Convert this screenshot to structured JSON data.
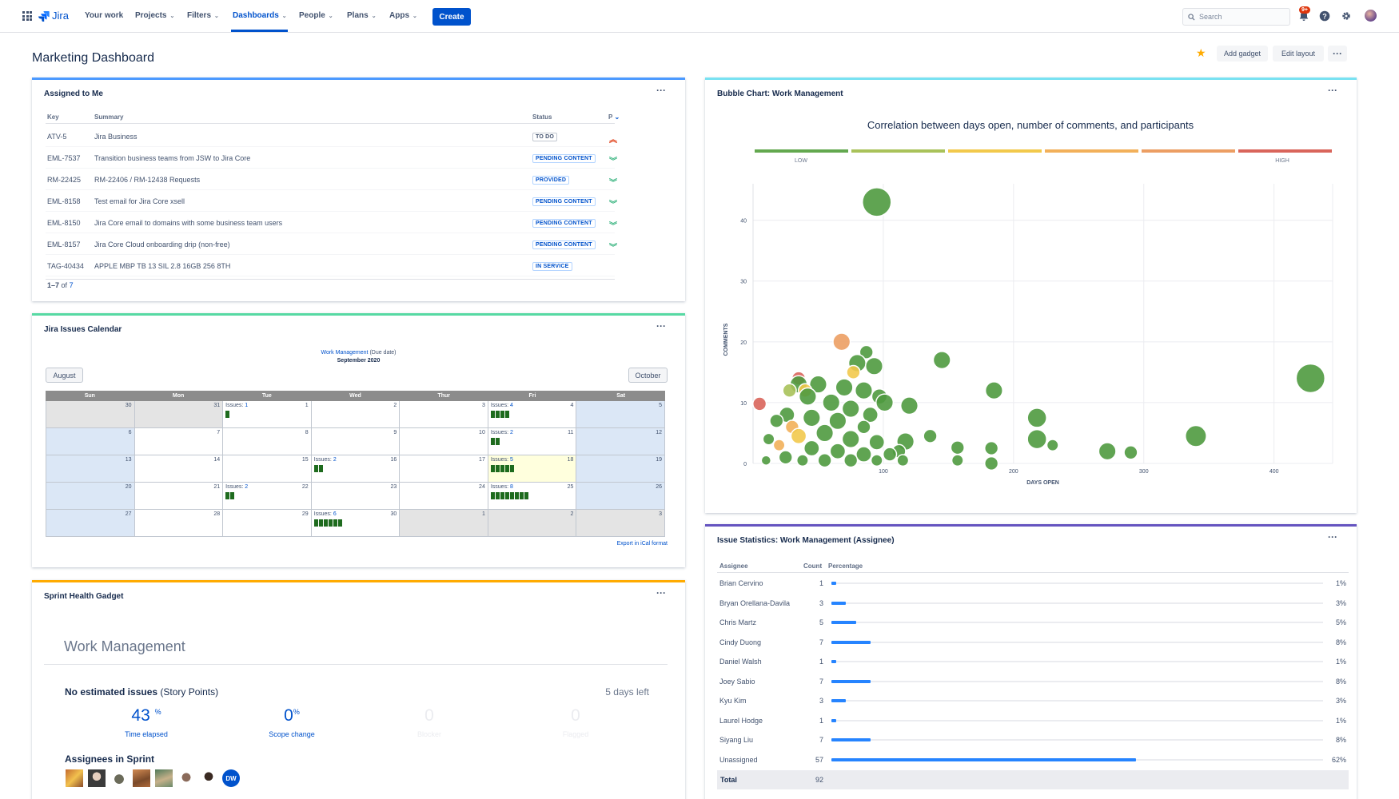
{
  "nav": {
    "product": "Jira",
    "items": [
      {
        "label": "Your work",
        "chevron": false
      },
      {
        "label": "Projects",
        "chevron": true
      },
      {
        "label": "Filters",
        "chevron": true
      },
      {
        "label": "Dashboards",
        "chevron": true,
        "active": true
      },
      {
        "label": "People",
        "chevron": true
      },
      {
        "label": "Plans",
        "chevron": true
      },
      {
        "label": "Apps",
        "chevron": true
      }
    ],
    "create": "Create",
    "search_placeholder": "Search",
    "notification_count": "9+"
  },
  "page": {
    "title": "Marketing Dashboard",
    "add_gadget": "Add gadget",
    "edit_layout": "Edit layout"
  },
  "assigned": {
    "title": "Assigned to Me",
    "columns": {
      "key": "Key",
      "summary": "Summary",
      "status": "Status",
      "priority": "P"
    },
    "rows": [
      {
        "key": "ATV-5",
        "summary": "Jira Business",
        "status": "TO DO",
        "priority": "highest"
      },
      {
        "key": "EML-7537",
        "summary": "Transition business teams from JSW to Jira Core",
        "status": "PENDING CONTENT",
        "priority": "lowest"
      },
      {
        "key": "RM-22425",
        "summary": "RM-22406 / RM-12438 Requests",
        "status": "PROVIDED",
        "priority": "lowest"
      },
      {
        "key": "EML-8158",
        "summary": "Test email for Jira Core xsell",
        "status": "PENDING CONTENT",
        "priority": "lowest"
      },
      {
        "key": "EML-8150",
        "summary": "Jira Core email to domains with some business team users",
        "status": "PENDING CONTENT",
        "priority": "lowest"
      },
      {
        "key": "EML-8157",
        "summary": "Jira Core Cloud onboarding drip (non-free)",
        "status": "PENDING CONTENT",
        "priority": "lowest"
      },
      {
        "key": "TAG-40434",
        "summary": "APPLE MBP TB 13 SIL 2.8 16GB 256 8TH",
        "status": "IN SERVICE",
        "priority": "none"
      }
    ],
    "pager_range": "1–7",
    "pager_of": "of",
    "pager_total": "7"
  },
  "calendar": {
    "title": "Jira Issues Calendar",
    "filter_link": "Work Management",
    "filter_suffix": "(Due date)",
    "month": "September 2020",
    "prev": "August",
    "next": "October",
    "days": [
      "Sun",
      "Mon",
      "Tue",
      "Wed",
      "Thur",
      "Fri",
      "Sat"
    ],
    "issues_label": "Issues:",
    "weeks": [
      [
        {
          "d": "30",
          "t": "out"
        },
        {
          "d": "31",
          "t": "out"
        },
        {
          "d": "1",
          "iss": 1
        },
        {
          "d": "2"
        },
        {
          "d": "3"
        },
        {
          "d": "4",
          "iss": 4
        },
        {
          "d": "5",
          "t": "we"
        }
      ],
      [
        {
          "d": "6",
          "t": "we"
        },
        {
          "d": "7"
        },
        {
          "d": "8"
        },
        {
          "d": "9"
        },
        {
          "d": "10"
        },
        {
          "d": "11",
          "iss": 2
        },
        {
          "d": "12",
          "t": "we"
        }
      ],
      [
        {
          "d": "13",
          "t": "we"
        },
        {
          "d": "14"
        },
        {
          "d": "15"
        },
        {
          "d": "16",
          "iss": 2
        },
        {
          "d": "17"
        },
        {
          "d": "18",
          "iss": 5,
          "t": "today"
        },
        {
          "d": "19",
          "t": "we"
        }
      ],
      [
        {
          "d": "20",
          "t": "we"
        },
        {
          "d": "21"
        },
        {
          "d": "22",
          "iss": 2
        },
        {
          "d": "23"
        },
        {
          "d": "24"
        },
        {
          "d": "25",
          "iss": 8
        },
        {
          "d": "26",
          "t": "we"
        }
      ],
      [
        {
          "d": "27",
          "t": "we"
        },
        {
          "d": "28"
        },
        {
          "d": "29"
        },
        {
          "d": "30",
          "iss": 6
        },
        {
          "d": "1",
          "t": "out"
        },
        {
          "d": "2",
          "t": "out"
        },
        {
          "d": "3",
          "t": "out"
        }
      ]
    ],
    "export": "Export in iCal format"
  },
  "sprint": {
    "title": "Sprint Health Gadget",
    "board": "Work Management",
    "estimate_bold": "No estimated issues",
    "estimate_unit": "(Story Points)",
    "days_left": "5 days left",
    "stats": [
      {
        "value": "43",
        "unit": "%",
        "label": "Time elapsed",
        "dim": false
      },
      {
        "value": "0",
        "unit": "%",
        "label": "Scope change",
        "dim": false
      },
      {
        "value": "0",
        "unit": "",
        "label": "Blocker",
        "dim": true
      },
      {
        "value": "0",
        "unit": "",
        "label": "Flagged",
        "dim": true
      }
    ],
    "assignees_title": "Assignees in Sprint",
    "assignee_initials": "DW"
  },
  "bubble": {
    "title": "Bubble Chart: Work Management",
    "subtitle": "Correlation between days open, number of comments, and participants",
    "legend_low": "LOW",
    "legend_high": "HIGH",
    "scale_colors": [
      "#63a84f",
      "#a9c25a",
      "#f2c94c",
      "#f2b05a",
      "#ec9e63",
      "#d9655b"
    ]
  },
  "chart_data": {
    "type": "scatter",
    "title": "Correlation between days open, number of comments, and participants",
    "xlabel": "DAYS OPEN",
    "ylabel": "COMMENTS",
    "xlim": [
      0,
      445
    ],
    "ylim": [
      0,
      46
    ],
    "xticks": [
      100,
      200,
      300,
      400
    ],
    "yticks": [
      0,
      10,
      20,
      30,
      40
    ],
    "grid": true,
    "points": [
      {
        "x": 95,
        "y": 43,
        "r": 3,
        "c": "low"
      },
      {
        "x": 428,
        "y": 14,
        "r": 3,
        "c": "low"
      },
      {
        "x": 340,
        "y": 4.5,
        "r": 2.2,
        "c": "low"
      },
      {
        "x": 145,
        "y": 17,
        "r": 1.8,
        "c": "low"
      },
      {
        "x": 185,
        "y": 12,
        "r": 1.8,
        "c": "low"
      },
      {
        "x": 218,
        "y": 7.5,
        "r": 2,
        "c": "low"
      },
      {
        "x": 218,
        "y": 4,
        "r": 2,
        "c": "low"
      },
      {
        "x": 230,
        "y": 3,
        "r": 1.2,
        "c": "low"
      },
      {
        "x": 272,
        "y": 2,
        "r": 1.8,
        "c": "low"
      },
      {
        "x": 290,
        "y": 1.8,
        "r": 1.4,
        "c": "low"
      },
      {
        "x": 183,
        "y": 2.5,
        "r": 1.4,
        "c": "low"
      },
      {
        "x": 183,
        "y": 0,
        "r": 1.4,
        "c": "low"
      },
      {
        "x": 157,
        "y": 2.6,
        "r": 1.4,
        "c": "low"
      },
      {
        "x": 157,
        "y": 0.5,
        "r": 1.2,
        "c": "low"
      },
      {
        "x": 136,
        "y": 4.5,
        "r": 1.4,
        "c": "low"
      },
      {
        "x": 120,
        "y": 9.5,
        "r": 1.8,
        "c": "low"
      },
      {
        "x": 117,
        "y": 3.6,
        "r": 1.8,
        "c": "low"
      },
      {
        "x": 112,
        "y": 2,
        "r": 1.4,
        "c": "low"
      },
      {
        "x": 68,
        "y": 20,
        "r": 1.8,
        "c": "high"
      },
      {
        "x": 5,
        "y": 9.8,
        "r": 1.4,
        "c": "very-high"
      },
      {
        "x": 87,
        "y": 18.3,
        "r": 1.4,
        "c": "low"
      },
      {
        "x": 80,
        "y": 16.5,
        "r": 1.8,
        "c": "low"
      },
      {
        "x": 93,
        "y": 16,
        "r": 1.8,
        "c": "low"
      },
      {
        "x": 77,
        "y": 15,
        "r": 1.4,
        "c": "mid"
      },
      {
        "x": 97,
        "y": 11,
        "r": 1.6,
        "c": "low"
      },
      {
        "x": 101,
        "y": 10,
        "r": 1.8,
        "c": "low"
      },
      {
        "x": 85,
        "y": 12,
        "r": 1.8,
        "c": "low"
      },
      {
        "x": 70,
        "y": 12.5,
        "r": 1.8,
        "c": "low"
      },
      {
        "x": 50,
        "y": 13,
        "r": 1.8,
        "c": "low"
      },
      {
        "x": 35,
        "y": 14,
        "r": 1.4,
        "c": "very-high"
      },
      {
        "x": 35,
        "y": 13,
        "r": 1.8,
        "c": "low"
      },
      {
        "x": 40,
        "y": 12,
        "r": 1.4,
        "c": "mid"
      },
      {
        "x": 28,
        "y": 12,
        "r": 1.4,
        "c": "mid-low"
      },
      {
        "x": 42,
        "y": 11,
        "r": 1.8,
        "c": "low"
      },
      {
        "x": 60,
        "y": 10,
        "r": 1.8,
        "c": "low"
      },
      {
        "x": 75,
        "y": 9,
        "r": 1.8,
        "c": "low"
      },
      {
        "x": 90,
        "y": 8,
        "r": 1.6,
        "c": "low"
      },
      {
        "x": 26,
        "y": 8,
        "r": 1.6,
        "c": "low"
      },
      {
        "x": 45,
        "y": 7.5,
        "r": 1.8,
        "c": "low"
      },
      {
        "x": 65,
        "y": 7,
        "r": 1.8,
        "c": "low"
      },
      {
        "x": 85,
        "y": 6,
        "r": 1.4,
        "c": "low"
      },
      {
        "x": 30,
        "y": 6,
        "r": 1.4,
        "c": "mid-high"
      },
      {
        "x": 18,
        "y": 7,
        "r": 1.4,
        "c": "low"
      },
      {
        "x": 55,
        "y": 5,
        "r": 1.8,
        "c": "low"
      },
      {
        "x": 75,
        "y": 4,
        "r": 1.8,
        "c": "low"
      },
      {
        "x": 95,
        "y": 3.5,
        "r": 1.6,
        "c": "low"
      },
      {
        "x": 35,
        "y": 4.5,
        "r": 1.6,
        "c": "mid"
      },
      {
        "x": 12,
        "y": 4,
        "r": 1.2,
        "c": "low"
      },
      {
        "x": 20,
        "y": 3,
        "r": 1.2,
        "c": "mid-high"
      },
      {
        "x": 45,
        "y": 2.5,
        "r": 1.6,
        "c": "low"
      },
      {
        "x": 65,
        "y": 2,
        "r": 1.6,
        "c": "low"
      },
      {
        "x": 85,
        "y": 1.5,
        "r": 1.6,
        "c": "low"
      },
      {
        "x": 105,
        "y": 1.5,
        "r": 1.4,
        "c": "low"
      },
      {
        "x": 25,
        "y": 1,
        "r": 1.4,
        "c": "low"
      },
      {
        "x": 55,
        "y": 0.5,
        "r": 1.4,
        "c": "low"
      },
      {
        "x": 75,
        "y": 0.5,
        "r": 1.4,
        "c": "low"
      },
      {
        "x": 10,
        "y": 0.5,
        "r": 1,
        "c": "low"
      },
      {
        "x": 38,
        "y": 0.5,
        "r": 1.2,
        "c": "low"
      },
      {
        "x": 95,
        "y": 0.5,
        "r": 1.2,
        "c": "low"
      },
      {
        "x": 115,
        "y": 0.5,
        "r": 1.2,
        "c": "low"
      }
    ]
  },
  "issue_stats": {
    "title": "Issue Statistics: Work Management (Assignee)",
    "columns": {
      "assignee": "Assignee",
      "count": "Count",
      "percentage": "Percentage"
    },
    "rows": [
      {
        "name": "Brian Cervino",
        "count": "1",
        "pct": "1%",
        "frac": 0.01
      },
      {
        "name": "Bryan Orellana-Davila",
        "count": "3",
        "pct": "3%",
        "frac": 0.03
      },
      {
        "name": "Chris Martz",
        "count": "5",
        "pct": "5%",
        "frac": 0.05
      },
      {
        "name": "Cindy Duong",
        "count": "7",
        "pct": "8%",
        "frac": 0.08
      },
      {
        "name": "Daniel Walsh",
        "count": "1",
        "pct": "1%",
        "frac": 0.01
      },
      {
        "name": "Joey Sabio",
        "count": "7",
        "pct": "8%",
        "frac": 0.08
      },
      {
        "name": "Kyu Kim",
        "count": "3",
        "pct": "3%",
        "frac": 0.03
      },
      {
        "name": "Laurel Hodge",
        "count": "1",
        "pct": "1%",
        "frac": 0.01
      },
      {
        "name": "Siyang Liu",
        "count": "7",
        "pct": "8%",
        "frac": 0.08
      },
      {
        "name": "Unassigned",
        "count": "57",
        "pct": "62%",
        "frac": 0.62
      }
    ],
    "total_label": "Total",
    "total_count": "92"
  },
  "colors": {
    "brand": "#0052cc",
    "assigned_border": "#4c9aff",
    "calendar_border": "#57d9a3",
    "sprint_border": "#ffab00",
    "bubble_border": "#79e2f2",
    "stats_border": "#6554c0"
  }
}
